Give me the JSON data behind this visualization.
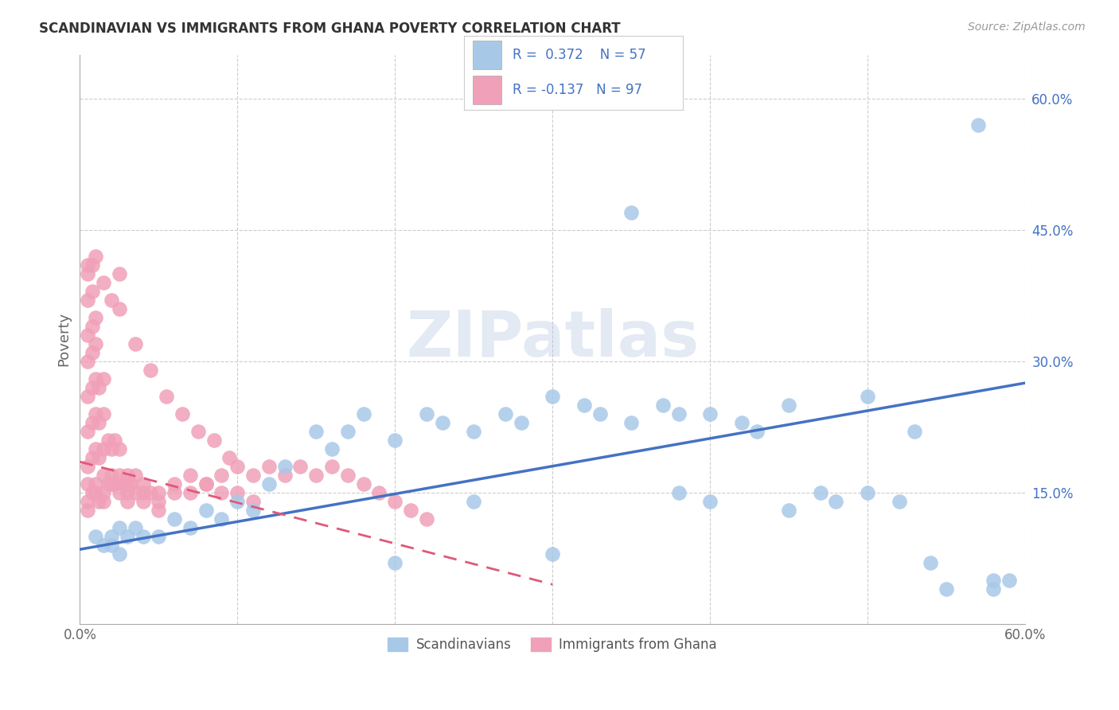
{
  "title": "SCANDINAVIAN VS IMMIGRANTS FROM GHANA POVERTY CORRELATION CHART",
  "source": "Source: ZipAtlas.com",
  "ylabel": "Poverty",
  "xlim": [
    0.0,
    0.6
  ],
  "ylim": [
    0.0,
    0.65
  ],
  "grid_color": "#cccccc",
  "background_color": "#ffffff",
  "scatter_blue_color": "#a8c8e8",
  "scatter_pink_color": "#f0a0b8",
  "line_blue_color": "#4472c4",
  "line_pink_color": "#e05878",
  "R_blue": 0.372,
  "N_blue": 57,
  "R_pink": -0.137,
  "N_pink": 97,
  "watermark": "ZIPatlas",
  "legend_blue_label": "Scandinavians",
  "legend_pink_label": "Immigrants from Ghana",
  "blue_line_x0": 0.0,
  "blue_line_y0": 0.085,
  "blue_line_x1": 0.6,
  "blue_line_y1": 0.275,
  "pink_line_x0": 0.0,
  "pink_line_y0": 0.185,
  "pink_line_x1": 0.3,
  "pink_line_y1": 0.045,
  "scandinavian_x": [
    0.01,
    0.015,
    0.02,
    0.025,
    0.02,
    0.025,
    0.03,
    0.035,
    0.04,
    0.05,
    0.06,
    0.07,
    0.08,
    0.09,
    0.1,
    0.11,
    0.12,
    0.13,
    0.15,
    0.16,
    0.17,
    0.18,
    0.2,
    0.22,
    0.23,
    0.25,
    0.27,
    0.28,
    0.3,
    0.32,
    0.33,
    0.35,
    0.37,
    0.38,
    0.4,
    0.42,
    0.43,
    0.45,
    0.47,
    0.48,
    0.5,
    0.52,
    0.54,
    0.55,
    0.57,
    0.58,
    0.59,
    0.5,
    0.53,
    0.58,
    0.35,
    0.38,
    0.4,
    0.45,
    0.3,
    0.25,
    0.2
  ],
  "scandinavian_y": [
    0.1,
    0.09,
    0.09,
    0.08,
    0.1,
    0.11,
    0.1,
    0.11,
    0.1,
    0.1,
    0.12,
    0.11,
    0.13,
    0.12,
    0.14,
    0.13,
    0.16,
    0.18,
    0.22,
    0.2,
    0.22,
    0.24,
    0.21,
    0.24,
    0.23,
    0.22,
    0.24,
    0.23,
    0.26,
    0.25,
    0.24,
    0.23,
    0.25,
    0.24,
    0.24,
    0.23,
    0.22,
    0.25,
    0.15,
    0.14,
    0.15,
    0.14,
    0.07,
    0.04,
    0.57,
    0.04,
    0.05,
    0.26,
    0.22,
    0.05,
    0.47,
    0.15,
    0.14,
    0.13,
    0.08,
    0.14,
    0.07
  ],
  "ghana_x": [
    0.005,
    0.008,
    0.01,
    0.012,
    0.015,
    0.018,
    0.02,
    0.022,
    0.025,
    0.028,
    0.03,
    0.032,
    0.035,
    0.005,
    0.008,
    0.01,
    0.012,
    0.015,
    0.018,
    0.02,
    0.022,
    0.025,
    0.005,
    0.008,
    0.01,
    0.012,
    0.015,
    0.005,
    0.008,
    0.01,
    0.012,
    0.015,
    0.005,
    0.008,
    0.01,
    0.005,
    0.008,
    0.01,
    0.005,
    0.008,
    0.005,
    0.008,
    0.005,
    0.005,
    0.01,
    0.015,
    0.02,
    0.025,
    0.03,
    0.035,
    0.04,
    0.045,
    0.05,
    0.06,
    0.07,
    0.08,
    0.09,
    0.1,
    0.11,
    0.12,
    0.13,
    0.14,
    0.15,
    0.16,
    0.17,
    0.18,
    0.19,
    0.2,
    0.21,
    0.22,
    0.025,
    0.03,
    0.04,
    0.05,
    0.06,
    0.07,
    0.08,
    0.09,
    0.1,
    0.11,
    0.015,
    0.02,
    0.03,
    0.04,
    0.05,
    0.005,
    0.01,
    0.015,
    0.02,
    0.025,
    0.035,
    0.045,
    0.055,
    0.065,
    0.075,
    0.085,
    0.095
  ],
  "ghana_y": [
    0.14,
    0.15,
    0.16,
    0.14,
    0.15,
    0.16,
    0.17,
    0.16,
    0.17,
    0.16,
    0.17,
    0.16,
    0.17,
    0.18,
    0.19,
    0.2,
    0.19,
    0.2,
    0.21,
    0.2,
    0.21,
    0.2,
    0.22,
    0.23,
    0.24,
    0.23,
    0.24,
    0.26,
    0.27,
    0.28,
    0.27,
    0.28,
    0.3,
    0.31,
    0.32,
    0.33,
    0.34,
    0.35,
    0.37,
    0.38,
    0.4,
    0.41,
    0.16,
    0.13,
    0.15,
    0.14,
    0.16,
    0.15,
    0.16,
    0.15,
    0.16,
    0.15,
    0.15,
    0.16,
    0.17,
    0.16,
    0.17,
    0.18,
    0.17,
    0.18,
    0.17,
    0.18,
    0.17,
    0.18,
    0.17,
    0.16,
    0.15,
    0.14,
    0.13,
    0.12,
    0.4,
    0.14,
    0.15,
    0.14,
    0.15,
    0.15,
    0.16,
    0.15,
    0.15,
    0.14,
    0.17,
    0.16,
    0.15,
    0.14,
    0.13,
    0.41,
    0.42,
    0.39,
    0.37,
    0.36,
    0.32,
    0.29,
    0.26,
    0.24,
    0.22,
    0.21,
    0.19
  ]
}
